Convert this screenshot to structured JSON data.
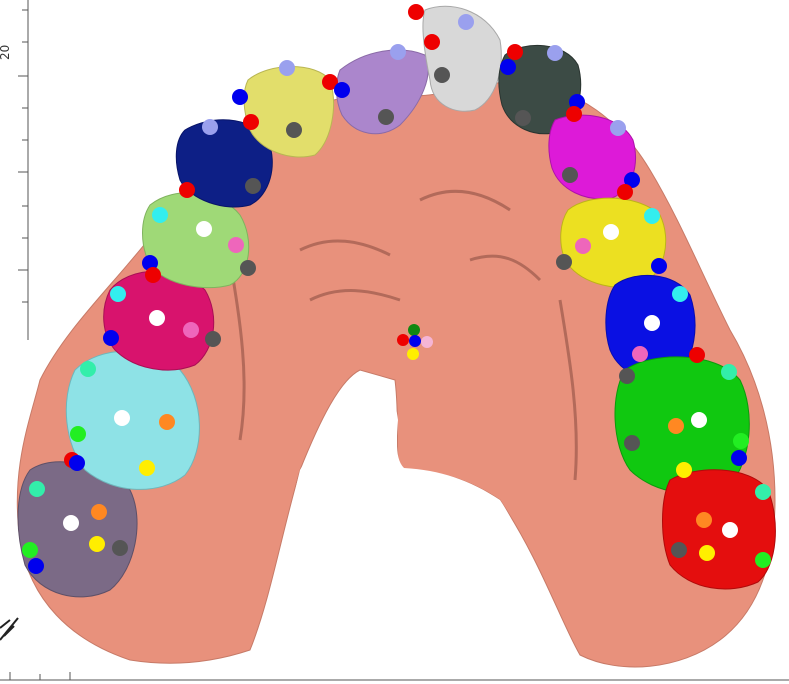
{
  "viewer": {
    "axis_tick_label": "20"
  },
  "colors": {
    "gum": "#e8917c",
    "gum_dark": "#b86654",
    "teeth": [
      "#7b6a86",
      "#8ee2e6",
      "#d8136d",
      "#9fd977",
      "#0d1f86",
      "#e2de6b",
      "#ab86cc",
      "#d8d8d8",
      "#3c4b45",
      "#dd1ad8",
      "#ece021",
      "#0a10e3",
      "#10c810",
      "#e40e0e"
    ]
  }
}
